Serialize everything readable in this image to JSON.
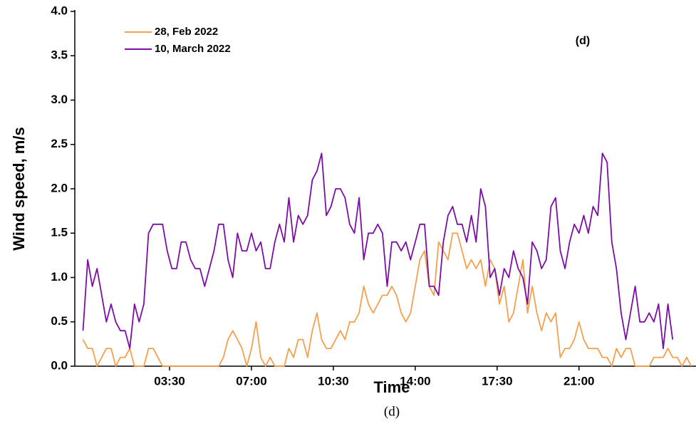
{
  "chart_data": {
    "type": "line",
    "x_label": "Time",
    "y_label": "Wind speed, m/s",
    "annotation": "(d)",
    "caption": "(d)",
    "x": [
      -0.2,
      0,
      0.2,
      0.4,
      0.6,
      0.8,
      1,
      1.2,
      1.4,
      1.6,
      1.8,
      2,
      2.2,
      2.4,
      2.6,
      2.8,
      3,
      3.2,
      3.4,
      3.6,
      3.8,
      4,
      4.2,
      4.4,
      4.6,
      4.8,
      5,
      5.2,
      5.4,
      5.6,
      5.8,
      6,
      6.2,
      6.4,
      6.6,
      6.8,
      7,
      7.2,
      7.4,
      7.6,
      7.8,
      8,
      8.2,
      8.4,
      8.6,
      8.8,
      9,
      9.2,
      9.4,
      9.6,
      9.8,
      10,
      10.2,
      10.4,
      10.6,
      10.8,
      11,
      11.2,
      11.4,
      11.6,
      11.8,
      12,
      12.2,
      12.4,
      12.6,
      12.8,
      13,
      13.2,
      13.4,
      13.6,
      13.8,
      14,
      14.2,
      14.4,
      14.6,
      14.8,
      15,
      15.2,
      15.4,
      15.6,
      15.8,
      16,
      16.2,
      16.4,
      16.6,
      16.8,
      17,
      17.2,
      17.4,
      17.6,
      17.8,
      18,
      18.2,
      18.4,
      18.6,
      18.8,
      19,
      19.2,
      19.4,
      19.6,
      19.8,
      20,
      20.2,
      20.4,
      20.6,
      20.8,
      21,
      21.2,
      21.4,
      21.6,
      21.8,
      22,
      22.2,
      22.4,
      22.6,
      22.8,
      23,
      23.2,
      23.4,
      23.6,
      23.8,
      24,
      24.2,
      24.4,
      24.6,
      24.8,
      25,
      25.2,
      25.4,
      25.6,
      25.8
    ],
    "series": [
      {
        "name": "28, Feb 2022",
        "color": "#f4a04f",
        "values": [
          0.3,
          0.2,
          0.2,
          0,
          0.1,
          0.2,
          0.2,
          0,
          0.1,
          0.1,
          0.2,
          0,
          0,
          0,
          0.2,
          0.2,
          0.1,
          0,
          0,
          0,
          0,
          0,
          0,
          0,
          0,
          0,
          0,
          0,
          0,
          0,
          0.1,
          0.3,
          0.4,
          0.3,
          0.2,
          0,
          0.2,
          0.5,
          0.1,
          0,
          0.1,
          0,
          0,
          0,
          0.2,
          0.1,
          0.3,
          0.3,
          0.1,
          0.4,
          0.6,
          0.3,
          0.2,
          0.2,
          0.3,
          0.4,
          0.3,
          0.5,
          0.5,
          0.6,
          0.9,
          0.7,
          0.6,
          0.7,
          0.8,
          0.8,
          0.9,
          0.8,
          0.6,
          0.5,
          0.6,
          0.9,
          1.2,
          1.3,
          0.9,
          0.8,
          1.4,
          1.3,
          1.2,
          1.5,
          1.5,
          1.3,
          1.1,
          1.2,
          1.1,
          1.2,
          0.9,
          1.2,
          1.1,
          0.7,
          0.9,
          0.5,
          0.6,
          0.9,
          1.2,
          0.6,
          0.9,
          0.6,
          0.4,
          0.6,
          0.5,
          0.6,
          0.1,
          0.2,
          0.2,
          0.3,
          0.5,
          0.3,
          0.2,
          0.2,
          0.2,
          0.1,
          0.1,
          0,
          0.2,
          0.1,
          0.2,
          0.2,
          0,
          0,
          0,
          0,
          0.1,
          0.1,
          0.1,
          0.2,
          0.1,
          0.1,
          0,
          0.1,
          0
        ]
      },
      {
        "name": "10, March 2022",
        "color": "#7b0fa3",
        "values": [
          0.4,
          1.2,
          0.9,
          1.1,
          0.8,
          0.5,
          0.7,
          0.5,
          0.4,
          0.4,
          0.2,
          0.7,
          0.5,
          0.7,
          1.5,
          1.6,
          1.6,
          1.6,
          1.3,
          1.1,
          1.1,
          1.4,
          1.4,
          1.2,
          1.1,
          1.1,
          0.9,
          1.1,
          1.3,
          1.6,
          1.6,
          1.2,
          1.0,
          1.5,
          1.3,
          1.3,
          1.5,
          1.3,
          1.4,
          1.1,
          1.1,
          1.4,
          1.6,
          1.4,
          1.9,
          1.4,
          1.7,
          1.6,
          1.7,
          2.1,
          2.2,
          2.4,
          1.7,
          1.8,
          2.0,
          2.0,
          1.9,
          1.6,
          1.5,
          1.9,
          1.2,
          1.5,
          1.5,
          1.6,
          1.5,
          0.9,
          1.4,
          1.4,
          1.3,
          1.4,
          1.2,
          1.4,
          1.6,
          1.6,
          0.9,
          0.9,
          0.8,
          1.4,
          1.7,
          1.8,
          1.6,
          1.6,
          1.4,
          1.7,
          1.4,
          2.0,
          1.8,
          1.0,
          1.1,
          0.8,
          1.1,
          1.0,
          1.3,
          1.1,
          1.0,
          0.7,
          1.4,
          1.3,
          1.1,
          1.2,
          1.8,
          1.9,
          1.3,
          1.1,
          1.4,
          1.6,
          1.5,
          1.7,
          1.5,
          1.8,
          1.7,
          2.4,
          2.3,
          1.4,
          1.1,
          0.6,
          0.3,
          0.6,
          0.9,
          0.5,
          0.5,
          0.6,
          0.5,
          0.7,
          0.2,
          0.7,
          0.3,
          null,
          null,
          null,
          null
        ]
      }
    ],
    "xlim": [
      -0.55,
      26
    ],
    "xticks": [
      {
        "value": 3.5,
        "label": "03:30"
      },
      {
        "value": 7,
        "label": "07:00"
      },
      {
        "value": 10.5,
        "label": "10:30"
      },
      {
        "value": 14,
        "label": "14:00"
      },
      {
        "value": 17.5,
        "label": "17:30"
      },
      {
        "value": 21,
        "label": "21:00"
      }
    ],
    "ylim": [
      0,
      4
    ],
    "yticks": [
      {
        "value": 0,
        "label": "0.0"
      },
      0.5,
      {
        "value": 1,
        "label": "1.0"
      },
      1.5,
      {
        "value": 2,
        "label": "2.0"
      },
      2.5,
      {
        "value": 3,
        "label": "3.0"
      },
      3.5,
      {
        "value": 4,
        "label": "4.0"
      }
    ],
    "grid": false,
    "legend": "upper-left"
  }
}
